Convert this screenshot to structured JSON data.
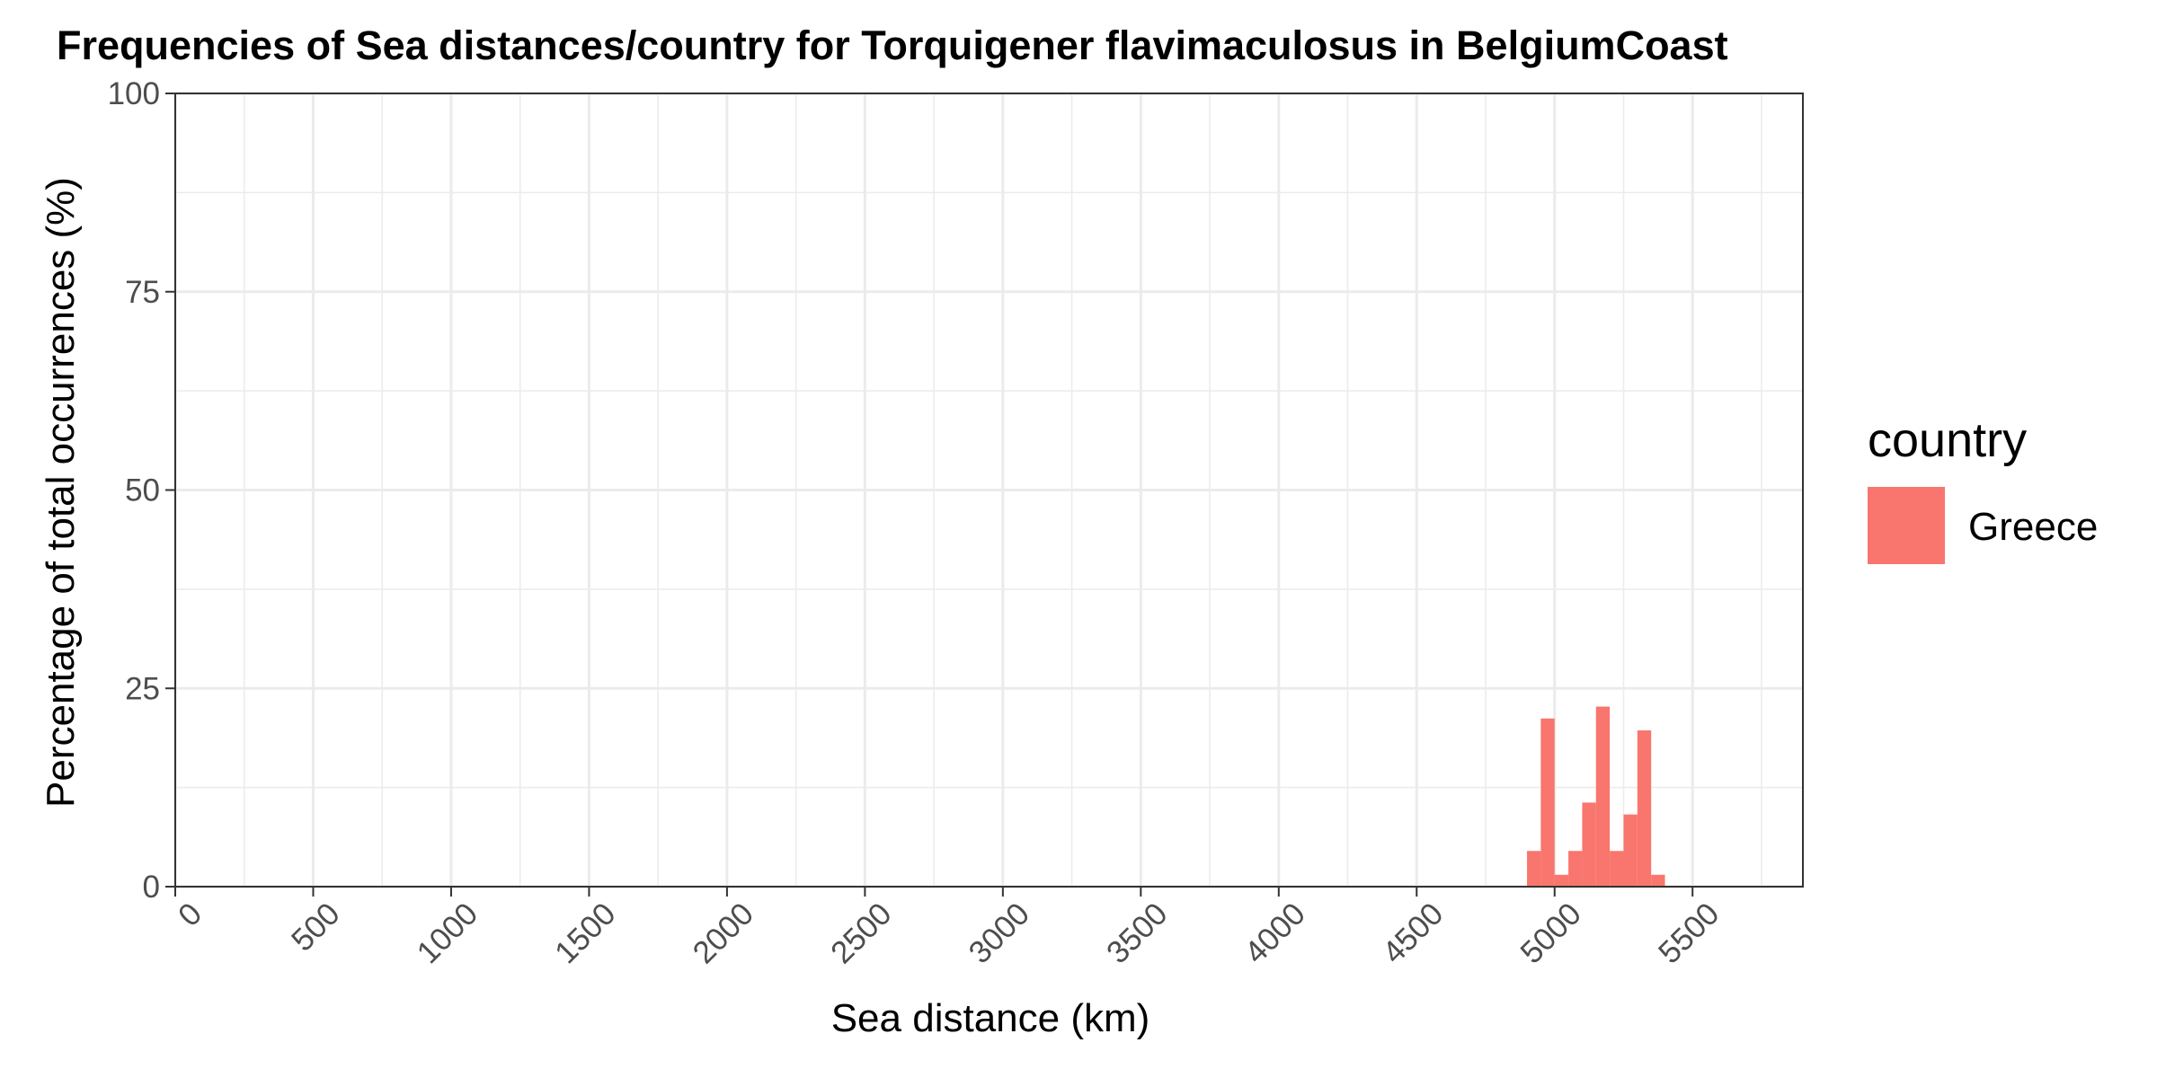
{
  "chart_data": {
    "type": "bar",
    "title": "Frequencies of Sea distances/country for Torquigener flavimaculosus in BelgiumCoast",
    "xlabel": "Sea distance (km)",
    "ylabel": "Percentage of total occurrences (%)",
    "xlim": [
      0,
      5900
    ],
    "ylim": [
      0,
      100
    ],
    "x_ticks": [
      0,
      500,
      1000,
      1500,
      2000,
      2500,
      3000,
      3500,
      4000,
      4500,
      5000,
      5500
    ],
    "x_tick_labels": [
      "0",
      "500",
      "1000",
      "1500",
      "2000",
      "2500",
      "3000",
      "3500",
      "4000",
      "4500",
      "5000",
      "5500"
    ],
    "y_ticks": [
      0,
      25,
      50,
      75,
      100
    ],
    "y_tick_labels": [
      "0",
      "25",
      "50",
      "75",
      "100"
    ],
    "grid": true,
    "bin_width": 50,
    "legend": {
      "title": "country",
      "position": "right"
    },
    "series": [
      {
        "name": "Greece",
        "color": "#F8766D",
        "bins": [
          {
            "x0": 4900,
            "x1": 4950,
            "value": 4.5
          },
          {
            "x0": 4950,
            "x1": 5000,
            "value": 21.2
          },
          {
            "x0": 5000,
            "x1": 5050,
            "value": 1.5
          },
          {
            "x0": 5050,
            "x1": 5100,
            "value": 4.5
          },
          {
            "x0": 5100,
            "x1": 5150,
            "value": 10.6
          },
          {
            "x0": 5150,
            "x1": 5200,
            "value": 22.7
          },
          {
            "x0": 5200,
            "x1": 5250,
            "value": 4.5
          },
          {
            "x0": 5250,
            "x1": 5300,
            "value": 9.1
          },
          {
            "x0": 5300,
            "x1": 5350,
            "value": 19.7
          },
          {
            "x0": 5350,
            "x1": 5400,
            "value": 1.5
          }
        ]
      }
    ]
  }
}
